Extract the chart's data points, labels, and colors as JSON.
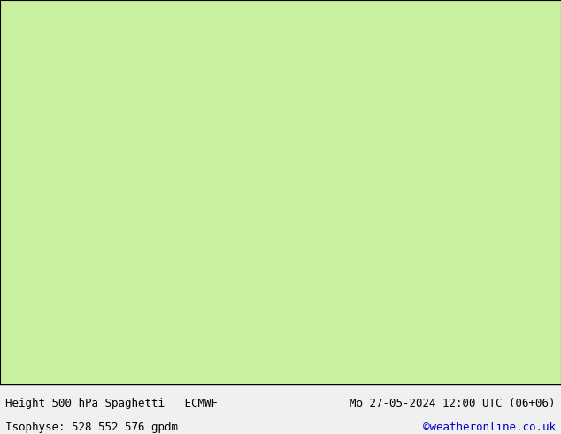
{
  "title_left": "Height 500 hPa Spaghetti   ECMWF",
  "title_right": "Mo 27-05-2024 12:00 UTC (06+06)",
  "bottom_left": "Isophyse: 528 552 576 gpdm",
  "bottom_right": "©weatheronline.co.uk",
  "bg_land": "#c8f0a0",
  "bg_sea": "#e8f4ff",
  "bg_gray": "#d0d0d0",
  "footer_bg": "#f0f0f0",
  "text_color_black": "#000000",
  "text_color_blue": "#0000cc",
  "font_size_title": 9,
  "font_size_footer": 9,
  "contour_colors": [
    "#ff0000",
    "#0000ff",
    "#00aa00",
    "#ff8800",
    "#aa00aa",
    "#00aaaa",
    "#888800",
    "#ff66aa",
    "#44ff44",
    "#4444ff"
  ],
  "map_extent": [
    -25,
    45,
    25,
    75
  ]
}
